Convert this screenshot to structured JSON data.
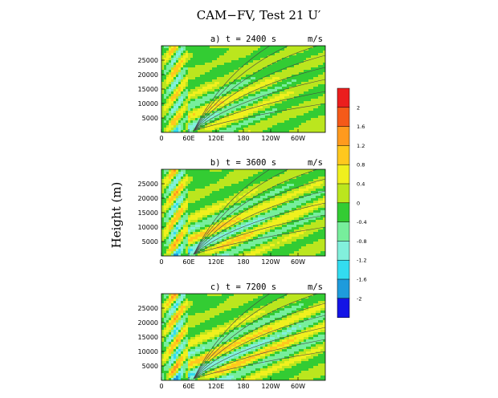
{
  "figure": {
    "title": "CAM−FV, Test 21 U′",
    "ylabel": "Height (m)"
  },
  "chart_data": {
    "type": "heatmap",
    "colorbar": {
      "levels": [
        -2.4,
        -2,
        -1.6,
        -1.2,
        -0.8,
        -0.4,
        0,
        0.4,
        0.8,
        1.2,
        1.6,
        2,
        2.4
      ],
      "tick_labels": [
        "2",
        "1.6",
        "1.2",
        "0.8",
        "0.4",
        "0",
        "-0.4",
        "-0.8",
        "-1.2",
        "-1.6",
        "-2"
      ],
      "colors": [
        "#1414e6",
        "#1e9bdc",
        "#33dcf0",
        "#82f0dc",
        "#77ee9c",
        "#33cc33",
        "#bbe61e",
        "#f0f01e",
        "#ffc81e",
        "#ff9a1e",
        "#f55a19",
        "#eb1e1e"
      ]
    },
    "panels": [
      {
        "title": "a) t = 2400 s",
        "units": "m/s",
        "x_ticks": [
          "0",
          "60E",
          "120E",
          "180",
          "120W",
          "60W"
        ],
        "y_ticks": [
          "5000",
          "10000",
          "15000",
          "20000",
          "25000"
        ],
        "ylim": [
          0,
          30000
        ]
      },
      {
        "title": "b) t = 3600 s",
        "units": "m/s",
        "x_ticks": [
          "0",
          "60E",
          "120E",
          "180",
          "120W",
          "60W"
        ],
        "y_ticks": [
          "5000",
          "10000",
          "15000",
          "20000",
          "25000"
        ],
        "ylim": [
          0,
          30000
        ]
      },
      {
        "title": "c) t = 7200 s",
        "units": "m/s",
        "x_ticks": [
          "0",
          "60E",
          "120E",
          "180",
          "120W",
          "60W"
        ],
        "y_ticks": [
          "5000",
          "10000",
          "15000",
          "20000",
          "25000"
        ],
        "ylim": [
          0,
          30000
        ]
      }
    ]
  }
}
